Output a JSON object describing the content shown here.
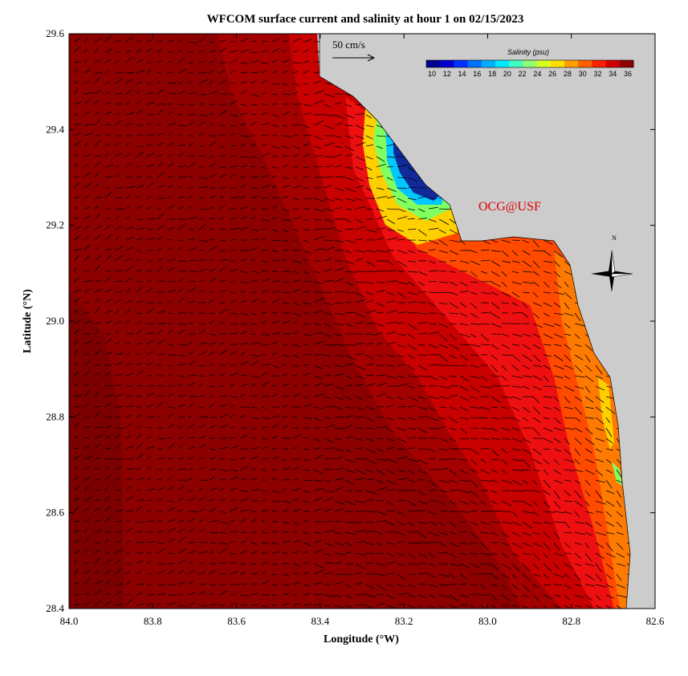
{
  "title": "WFCOM surface current and salinity at hour 1 on 02/15/2023",
  "xlabel": "Longitude (°W)",
  "ylabel": "Latitude (°N)",
  "credit": "OCG@USF",
  "scale_label": "50 cm/s",
  "compass_label": "N",
  "colorbar": {
    "title": "Salinity (psu)",
    "ticks": [
      "10",
      "12",
      "14",
      "16",
      "18",
      "20",
      "22",
      "24",
      "26",
      "28",
      "30",
      "32",
      "34",
      "36"
    ],
    "colors": [
      "#00008f",
      "#0000d0",
      "#0030ff",
      "#0070ff",
      "#00b0ff",
      "#00e8ff",
      "#40ffc0",
      "#90ff70",
      "#d8ff20",
      "#ffe000",
      "#ffa000",
      "#ff6000",
      "#ff2000",
      "#d00000",
      "#8f0000"
    ]
  },
  "axes": {
    "x_ticks": [
      "84.0",
      "83.8",
      "83.6",
      "83.4",
      "83.2",
      "83.0",
      "82.8",
      "82.6"
    ],
    "y_ticks": [
      "29.6",
      "29.4",
      "29.2",
      "29.0",
      "28.8",
      "28.6",
      "28.4"
    ],
    "xlim": [
      84.0,
      82.6
    ],
    "ylim": [
      28.4,
      29.6
    ]
  },
  "colors": {
    "land": "#cccccc",
    "deep": "#8c0000",
    "offshore": "#a30000",
    "midshelf": "#c80000",
    "inner": "#ee1010",
    "coastal": "#ff4a00",
    "nearshore": "#ff7a00",
    "plume_core": "#102a9a"
  }
}
